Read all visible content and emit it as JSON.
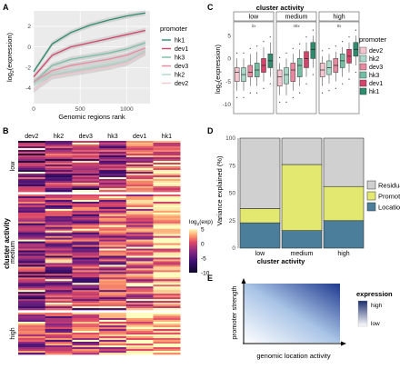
{
  "panel_labels": {
    "a": "A",
    "b": "B",
    "c": "C",
    "d": "D",
    "e": "E"
  },
  "colors": {
    "hk1": "#2e8b6e",
    "dev1": "#d4446a",
    "hk3": "#74bfa3",
    "dev3": "#e8899f",
    "hk2": "#a9d8c8",
    "dev2": "#f5c6d0",
    "residuals": "#d0d0d0",
    "promoter": "#e3e871",
    "location": "#4a7e9b"
  },
  "panel_a": {
    "xlabel": "Genomic regions rank",
    "ylabel_base": "log",
    "ylabel_sub": "2",
    "ylabel_rest": "(expression)",
    "xticks": [
      "0",
      "500",
      "1000"
    ],
    "yticks": [
      "2",
      "0",
      "-2",
      "-4"
    ],
    "legend_title": "promoter",
    "legend": [
      "hk1",
      "dev1",
      "hk3",
      "dev3",
      "hk2",
      "dev2"
    ]
  },
  "panel_b": {
    "columns": [
      "dev2",
      "hk2",
      "dev3",
      "hk3",
      "dev1",
      "hk1"
    ],
    "groups": [
      "low",
      "medium",
      "high"
    ],
    "ylabel": "cluster activity",
    "colorbar_title_base": "log",
    "colorbar_title_sub": "2",
    "colorbar_title_rest": "(exp)",
    "colorbar_ticks": [
      "5",
      "0",
      "-5",
      "-10"
    ]
  },
  "panel_c": {
    "title": "cluster activity",
    "facets": [
      "low",
      "medium",
      "high"
    ],
    "facet_notes": [
      "2x",
      "48x",
      "9x"
    ],
    "ylabel_base": "log",
    "ylabel_sub": "2",
    "ylabel_rest": "(expression)",
    "yticks": [
      "5",
      "0",
      "-5",
      "-10"
    ],
    "legend_title": "promoter",
    "legend": [
      "dev2",
      "hk2",
      "dev3",
      "hk3",
      "dev1",
      "hk1"
    ]
  },
  "panel_d": {
    "ylabel": "Variance explained (%)",
    "xlabel": "cluster activity",
    "yticks": [
      "100",
      "75",
      "50",
      "25",
      "0"
    ],
    "legend": [
      "Residuals",
      "Promoter",
      "Location"
    ]
  },
  "panel_e": {
    "ylabel": "promoter strength",
    "xlabel": "genomic location activity",
    "legend_title": "expression",
    "legend_high": "high",
    "legend_low": "low"
  },
  "chart_data": [
    {
      "type": "line",
      "panel": "A",
      "x": [
        0,
        200,
        400,
        600,
        800,
        1000,
        1200
      ],
      "xlim": [
        0,
        1250
      ],
      "ylim": [
        -5.5,
        3.5
      ],
      "series": [
        {
          "name": "hk1",
          "values": [
            -2.4,
            0.3,
            1.4,
            2.1,
            2.6,
            3.0,
            3.3
          ]
        },
        {
          "name": "dev1",
          "values": [
            -2.9,
            -0.8,
            0.0,
            0.4,
            0.8,
            1.2,
            1.6
          ]
        },
        {
          "name": "hk3",
          "values": [
            -3.4,
            -1.8,
            -1.2,
            -0.9,
            -0.6,
            -0.2,
            0.4
          ]
        },
        {
          "name": "dev3",
          "values": [
            -3.4,
            -2.3,
            -1.8,
            -1.5,
            -1.2,
            -0.8,
            -0.1
          ]
        },
        {
          "name": "hk2",
          "values": [
            -3.6,
            -2.7,
            -2.3,
            -2.0,
            -1.7,
            -1.3,
            -0.5
          ]
        },
        {
          "name": "dev2",
          "values": [
            -4.2,
            -2.9,
            -2.6,
            -2.3,
            -2.0,
            -1.6,
            -0.6
          ]
        }
      ]
    },
    {
      "type": "heatmap",
      "panel": "B",
      "columns": [
        "dev2",
        "hk2",
        "dev3",
        "hk3",
        "dev1",
        "hk1"
      ],
      "groups": [
        "low",
        "medium",
        "high"
      ],
      "column_mean_expression": {
        "low": [
          -5,
          -4,
          -4,
          -3,
          -1,
          1
        ],
        "medium": [
          -4,
          -3,
          -3,
          -2,
          0,
          2
        ],
        "high": [
          -2,
          -2,
          -1,
          0,
          2,
          3
        ]
      },
      "color_range": [
        -10,
        5
      ]
    },
    {
      "type": "box",
      "panel": "C",
      "facets": [
        "low",
        "medium",
        "high"
      ],
      "series": [
        "dev2",
        "hk2",
        "dev3",
        "hk3",
        "dev1",
        "hk1"
      ],
      "ylim": [
        -12,
        8
      ],
      "boxes": {
        "low": [
          [
            -7,
            -5,
            -3,
            -2,
            0
          ],
          [
            -7,
            -5,
            -3.5,
            -2,
            0
          ],
          [
            -6,
            -4,
            -3,
            -1.5,
            1
          ],
          [
            -6,
            -4,
            -2.5,
            -1,
            1.5
          ],
          [
            -5,
            -3,
            -1.5,
            0,
            2.5
          ],
          [
            -4,
            -2,
            -0.5,
            1,
            3.5
          ]
        ],
        "medium": [
          [
            -8,
            -6,
            -4,
            -2.5,
            -1
          ],
          [
            -8,
            -5.5,
            -3.5,
            -2,
            0
          ],
          [
            -7,
            -5,
            -2.5,
            -1,
            1
          ],
          [
            -6,
            -4,
            -1.5,
            0,
            2
          ],
          [
            -4,
            -2,
            0,
            1.5,
            3.5
          ],
          [
            -2,
            0,
            2,
            3.5,
            5
          ]
        ],
        "high": [
          [
            -6,
            -4,
            -2.5,
            -1,
            0.5
          ],
          [
            -5.5,
            -3.5,
            -2,
            -0.5,
            1
          ],
          [
            -5,
            -3,
            -1.5,
            0,
            1.5
          ],
          [
            -4,
            -2,
            -0.5,
            1,
            2.5
          ],
          [
            -3,
            -1,
            0.5,
            2,
            3.5
          ],
          [
            -1.5,
            0.5,
            2,
            3.5,
            5
          ]
        ]
      }
    },
    {
      "type": "bar",
      "panel": "D",
      "categories": [
        "low",
        "medium",
        "high"
      ],
      "ylim": [
        0,
        100
      ],
      "series": [
        {
          "name": "Location",
          "values": [
            23,
            16,
            25
          ]
        },
        {
          "name": "Promoter",
          "values": [
            13,
            60,
            31
          ]
        },
        {
          "name": "Residuals",
          "values": [
            64,
            24,
            44
          ]
        }
      ]
    }
  ]
}
